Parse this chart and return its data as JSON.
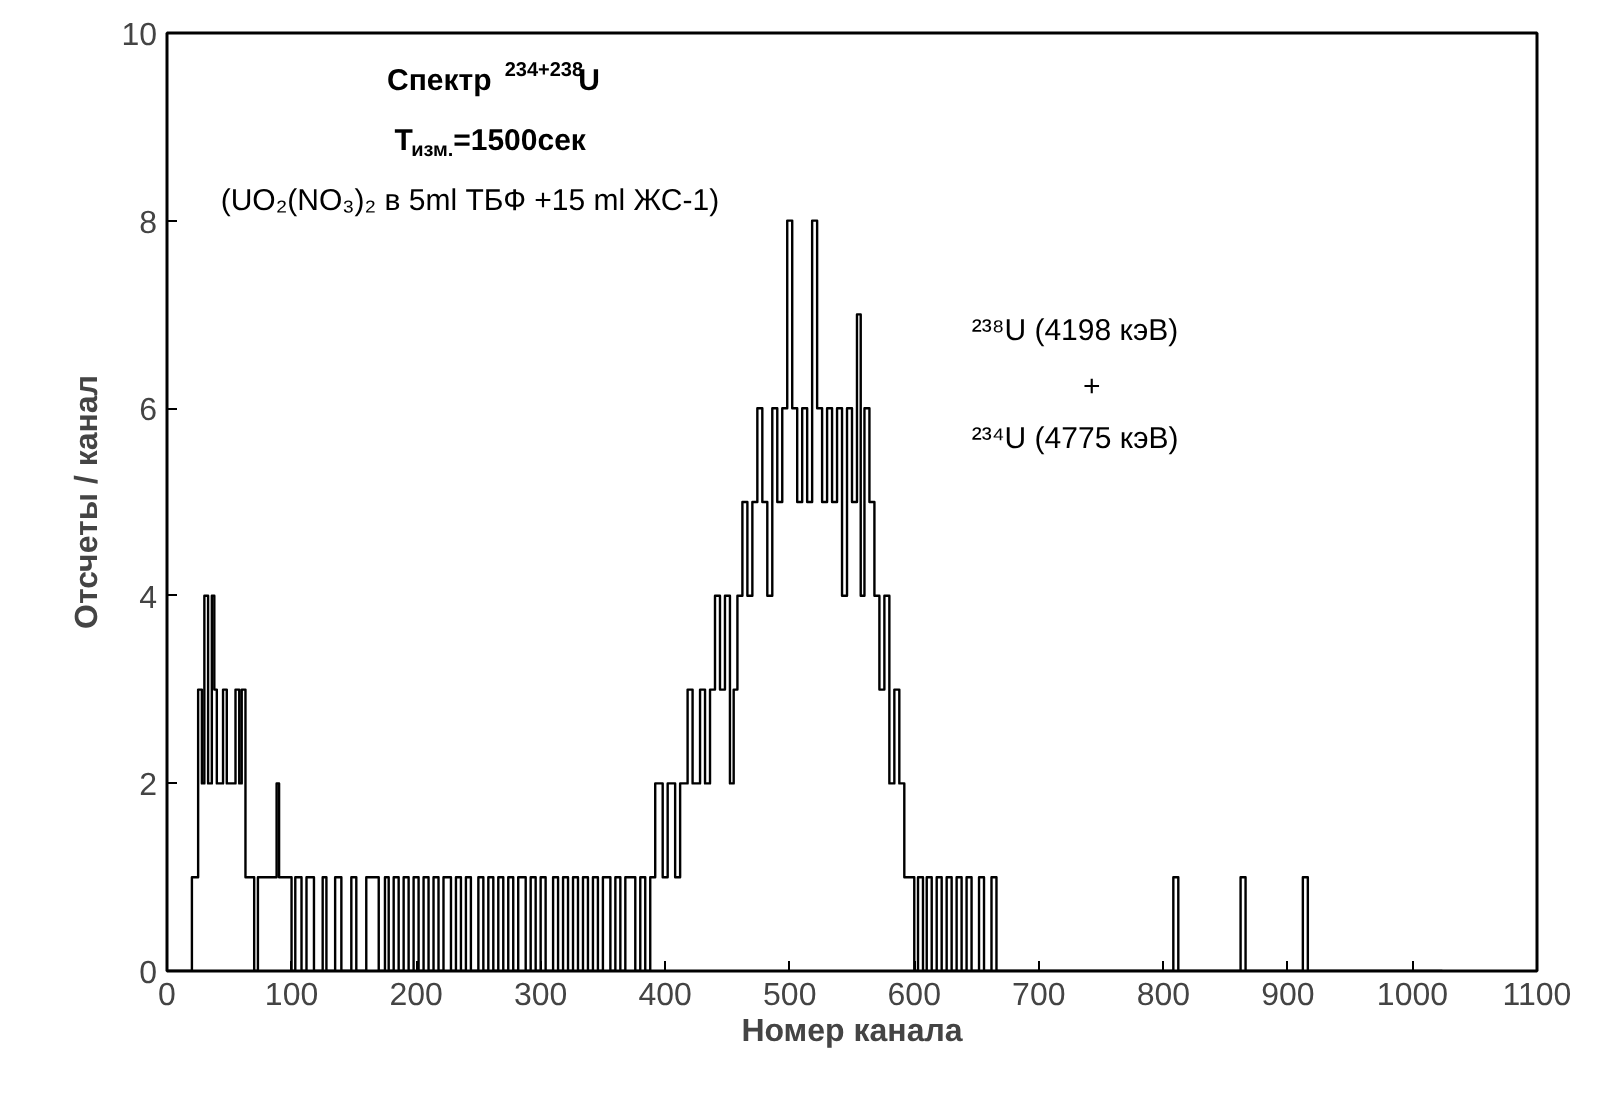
{
  "chart_data": {
    "type": "step",
    "xlabel": "Номер канала",
    "ylabel": "Отсчеты / канал",
    "annotations": [
      "Спектр $^{234+238}$U",
      "T$_{изм.}$=1500сек",
      "(UO₂(NO₃)₂  в 5ml ТБФ +15 ml ЖС-1)",
      "²³⁸U (4198 кэВ)",
      "+",
      "²³⁴U (4775 кэВ)"
    ],
    "x": [
      0,
      20,
      25,
      28,
      30,
      33,
      36,
      38,
      40,
      45,
      48,
      52,
      55,
      58,
      60,
      63,
      68,
      70,
      73,
      85,
      88,
      90,
      100,
      103,
      108,
      112,
      118,
      125,
      128,
      135,
      140,
      148,
      152,
      160,
      170,
      175,
      178,
      182,
      186,
      190,
      194,
      198,
      202,
      206,
      210,
      214,
      218,
      222,
      228,
      232,
      236,
      240,
      244,
      250,
      254,
      258,
      262,
      266,
      270,
      274,
      278,
      282,
      288,
      292,
      296,
      300,
      304,
      310,
      314,
      318,
      322,
      326,
      330,
      334,
      338,
      342,
      346,
      350,
      356,
      360,
      364,
      368,
      376,
      380,
      384,
      388,
      392,
      398,
      402,
      408,
      412,
      418,
      422,
      428,
      432,
      436,
      440,
      444,
      448,
      452,
      455,
      458,
      462,
      466,
      470,
      474,
      478,
      482,
      486,
      490,
      494,
      498,
      502,
      506,
      510,
      514,
      518,
      522,
      526,
      530,
      534,
      538,
      542,
      546,
      550,
      554,
      557,
      560,
      564,
      568,
      572,
      576,
      580,
      584,
      588,
      592,
      600,
      603,
      607,
      610,
      614,
      618,
      622,
      626,
      630,
      634,
      638,
      642,
      646,
      652,
      656,
      662,
      666,
      808,
      812,
      862,
      866,
      912,
      916,
      1024
    ],
    "series": [
      {
        "color": "#000000",
        "values": [
          0,
          1,
          3,
          2,
          4,
          2,
          4,
          3,
          2,
          3,
          2,
          2,
          3,
          2,
          3,
          1,
          1,
          0,
          1,
          1,
          2,
          1,
          0,
          1,
          0,
          1,
          0,
          1,
          0,
          1,
          0,
          1,
          0,
          1,
          0,
          1,
          0,
          1,
          0,
          1,
          0,
          1,
          0,
          1,
          0,
          1,
          0,
          1,
          0,
          1,
          0,
          1,
          0,
          1,
          0,
          1,
          0,
          1,
          0,
          1,
          0,
          1,
          0,
          1,
          0,
          1,
          0,
          1,
          0,
          1,
          0,
          1,
          0,
          1,
          0,
          1,
          0,
          1,
          0,
          1,
          0,
          1,
          0,
          1,
          0,
          1,
          2,
          1,
          2,
          1,
          2,
          3,
          2,
          3,
          2,
          3,
          4,
          3,
          4,
          2,
          3,
          4,
          5,
          4,
          5,
          6,
          5,
          4,
          6,
          5,
          6,
          8,
          6,
          5,
          6,
          5,
          8,
          6,
          5,
          6,
          5,
          6,
          4,
          6,
          5,
          7,
          4,
          6,
          5,
          4,
          3,
          4,
          2,
          3,
          2,
          1,
          0,
          1,
          0,
          1,
          0,
          1,
          0,
          1,
          0,
          1,
          0,
          1,
          0,
          1,
          0,
          1,
          0,
          1,
          0,
          1,
          0,
          1,
          0,
          0
        ]
      }
    ],
    "xlim": [
      0,
      1100
    ],
    "xticks": [
      0,
      100,
      200,
      300,
      400,
      500,
      600,
      700,
      800,
      900,
      1000,
      1100
    ],
    "ylim": [
      0,
      10
    ],
    "yticks": [
      0,
      2,
      4,
      6,
      8,
      10
    ],
    "grid": false
  }
}
